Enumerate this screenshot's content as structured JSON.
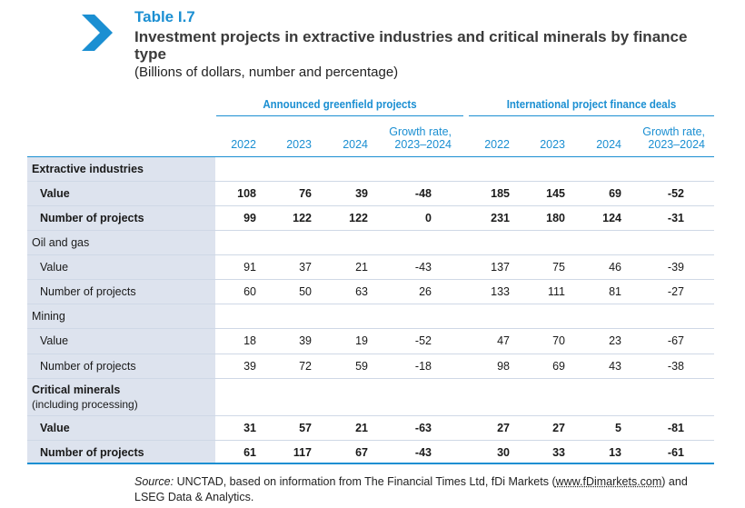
{
  "table_label": "Table I.7",
  "title": "Investment projects in extractive industries and critical minerals by finance type",
  "subtitle": "(Billions of dollars, number and percentage)",
  "groups": [
    "Announced greenfield projects",
    "International project finance deals"
  ],
  "columns": [
    "2022",
    "2023",
    "2024",
    "Growth rate,",
    "2023–2024"
  ],
  "sections": {
    "extractive": {
      "label": "Extractive industries",
      "value": {
        "label": "Value",
        "cells": [
          "108",
          "76",
          "39",
          "-48",
          "185",
          "145",
          "69",
          "-52"
        ]
      },
      "projects": {
        "label": "Number of projects",
        "cells": [
          "99",
          "122",
          "122",
          "0",
          "231",
          "180",
          "124",
          "-31"
        ]
      }
    },
    "oilgas": {
      "label": "Oil and gas",
      "value": {
        "label": "Value",
        "cells": [
          "91",
          "37",
          "21",
          "-43",
          "137",
          "75",
          "46",
          "-39"
        ]
      },
      "projects": {
        "label": "Number of projects",
        "cells": [
          "60",
          "50",
          "63",
          "26",
          "133",
          "111",
          "81",
          "-27"
        ]
      }
    },
    "mining": {
      "label": "Mining",
      "value": {
        "label": "Value",
        "cells": [
          "18",
          "39",
          "19",
          "-52",
          "47",
          "70",
          "23",
          "-67"
        ]
      },
      "projects": {
        "label": "Number of projects",
        "cells": [
          "39",
          "72",
          "59",
          "-18",
          "98",
          "69",
          "43",
          "-38"
        ]
      }
    },
    "critical": {
      "label": "Critical minerals",
      "sublabel": "(including processing)",
      "value": {
        "label": "Value",
        "cells": [
          "31",
          "57",
          "21",
          "-63",
          "27",
          "27",
          "5",
          "-81"
        ]
      },
      "projects": {
        "label": "Number of projects",
        "cells": [
          "61",
          "117",
          "67",
          "-43",
          "30",
          "33",
          "13",
          "-61"
        ]
      }
    }
  },
  "source": {
    "prefix": "Source:",
    "text_a": " UNCTAD, based on information from The Financial Times Ltd, fDi Markets (",
    "link": "www.fDimarkets.com",
    "text_b": ") and LSEG Data & Analytics."
  },
  "colors": {
    "accent": "#1b8fd2",
    "shade": "#dde3ee"
  }
}
